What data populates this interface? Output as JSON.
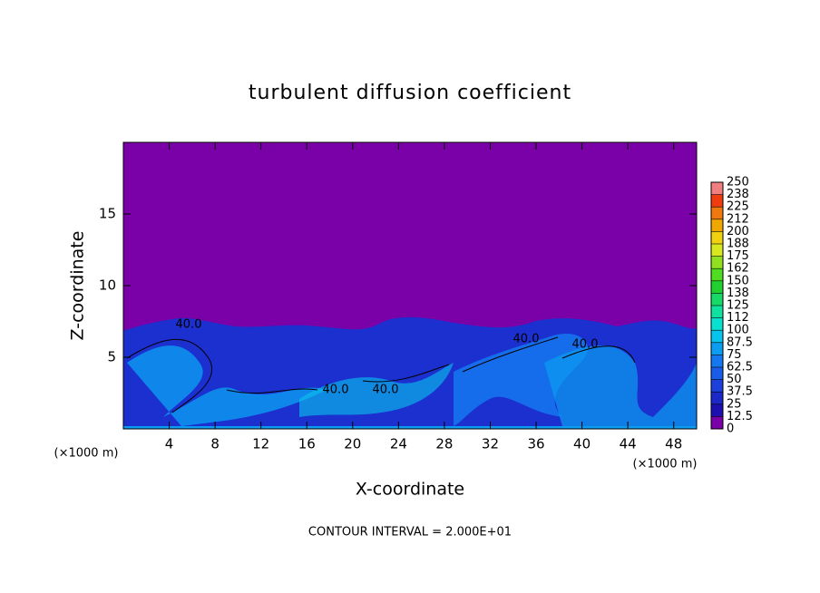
{
  "chart_data": {
    "type": "contour",
    "title": "turbulent diffusion coefficient",
    "x_label": "X-coordinate",
    "y_label": "Z-coordinate",
    "x_unit": "(×1000 m)",
    "footnote": "CONTOUR INTERVAL = 2.000E+01",
    "xlim": [
      0,
      50
    ],
    "ylim": [
      0,
      20
    ],
    "xticks": [
      4,
      8,
      12,
      16,
      20,
      24,
      28,
      32,
      36,
      40,
      44,
      48
    ],
    "yticks": [
      5,
      10,
      15
    ],
    "contour_labels": [
      "40.0",
      "40.0",
      "40.0",
      "40.0",
      "40.0"
    ],
    "colorbar": {
      "levels": [
        0,
        12.5,
        25,
        37.5,
        50,
        62.5,
        75,
        87.5,
        100,
        112,
        125,
        138,
        150,
        162,
        175,
        188,
        200,
        212,
        225,
        238,
        250
      ],
      "colors": [
        "#7a00a8",
        "#1c10b0",
        "#1a28c8",
        "#1c40dc",
        "#1a5cea",
        "#1478f0",
        "#0c9cf0",
        "#08c4ec",
        "#08e0d0",
        "#10e0a0",
        "#18d868",
        "#20d030",
        "#50dc20",
        "#90e020",
        "#d8e820",
        "#f0d010",
        "#f0a800",
        "#f07810",
        "#f03c10",
        "#f08080"
      ]
    }
  }
}
